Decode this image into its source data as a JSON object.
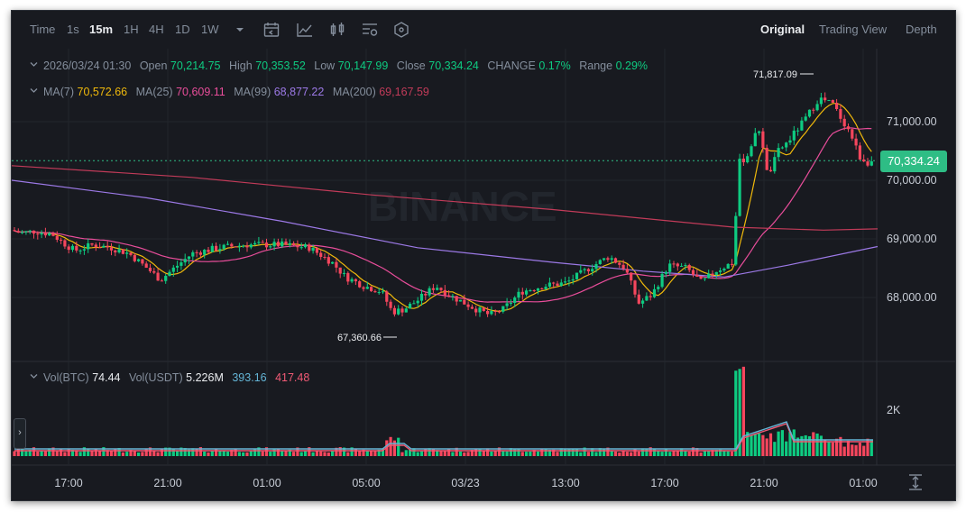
{
  "toolbar": {
    "time_label": "Time",
    "intervals": [
      "1s",
      "15m",
      "1H",
      "4H",
      "1D",
      "1W"
    ],
    "active_interval": "15m",
    "view_tabs": [
      "Original",
      "Trading View",
      "Depth"
    ],
    "active_view": "Original",
    "icons": [
      "chevron-down-icon",
      "calendar-icon",
      "indicator-icon",
      "candle-type-icon",
      "settings-list-icon",
      "hexagon-settings-icon"
    ]
  },
  "ohlc": {
    "date": "2026/03/24 01:30",
    "open_label": "Open",
    "open": "70,214.75",
    "high_label": "High",
    "high": "70,353.52",
    "low_label": "Low",
    "low": "70,147.99",
    "close_label": "Close",
    "close": "70,334.24",
    "change_label": "CHANGE",
    "change": "0.17%",
    "range_label": "Range",
    "range": "0.29%"
  },
  "ma": {
    "ma7_label": "MA(7)",
    "ma7": "70,572.66",
    "ma25_label": "MA(25)",
    "ma25": "70,609.11",
    "ma99_label": "MA(99)",
    "ma99": "68,877.22",
    "ma200_label": "MA(200)",
    "ma200": "69,167.59"
  },
  "volume": {
    "vol_btc_label": "Vol(BTC)",
    "vol_btc": "74.44",
    "vol_usdt_label": "Vol(USDT)",
    "vol_usdt": "5.226M",
    "ma_a": "393.16",
    "ma_b": "417.48",
    "axis_label": "2K"
  },
  "price_axis": [
    "71,000.00",
    "70,000.00",
    "69,000.00",
    "68,000.00"
  ],
  "current_price": "70,334.24",
  "time_axis": [
    "17:00",
    "21:00",
    "01:00",
    "05:00",
    "03/23",
    "13:00",
    "17:00",
    "21:00",
    "01:00"
  ],
  "annotations": {
    "high": "71,817.09",
    "low": "67,360.66"
  },
  "watermark": "BINANCE",
  "colors": {
    "up": "#0ecb81",
    "down": "#f6465d",
    "ma7": "#f0b90b",
    "ma25": "#e84d9a",
    "ma99": "#9c79e6",
    "ma200": "#c23b59",
    "vol_ma_a": "#64b5d6",
    "vol_ma_b": "#f05a75"
  },
  "chart_data": {
    "type": "candlestick",
    "symbol_interval": "15m",
    "price_axis_ticks": [
      68000,
      69000,
      70000,
      71000
    ],
    "annotated_high": 71817.09,
    "annotated_low": 67360.66,
    "current_price": 70334.24
  }
}
